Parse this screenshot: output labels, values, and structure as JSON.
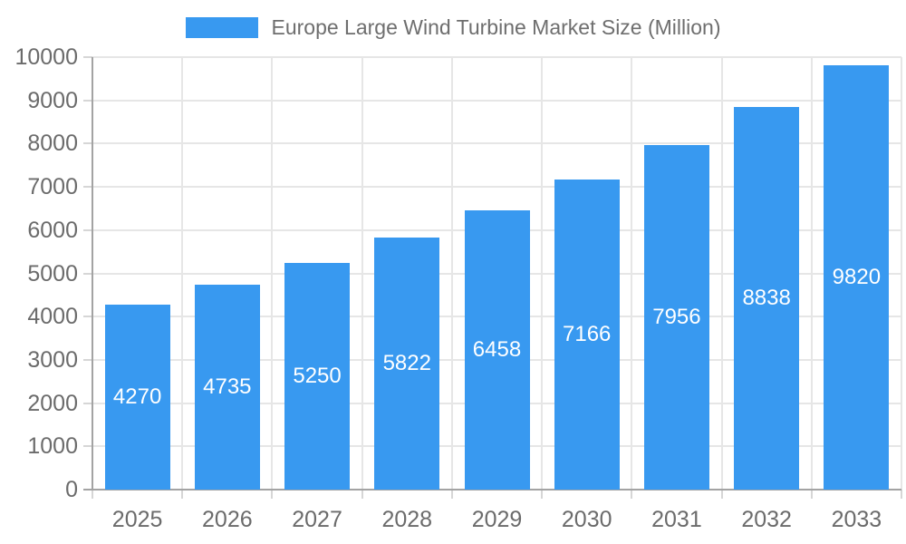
{
  "chart_data": {
    "type": "bar",
    "title": "Europe Large Wind Turbine Market Size (Million)",
    "categories": [
      "2025",
      "2026",
      "2027",
      "2028",
      "2029",
      "2030",
      "2031",
      "2032",
      "2033"
    ],
    "values": [
      4270,
      4735,
      5250,
      5822,
      6458,
      7166,
      7956,
      8838,
      9820
    ],
    "series": [
      {
        "name": "Europe Large Wind Turbine Market Size (Million)",
        "values": [
          4270,
          4735,
          5250,
          5822,
          6458,
          7166,
          7956,
          8838,
          9820
        ]
      }
    ],
    "xlabel": "",
    "ylabel": "",
    "ylim": [
      0,
      10000
    ],
    "yticks": [
      0,
      1000,
      2000,
      3000,
      4000,
      5000,
      6000,
      7000,
      8000,
      9000,
      10000
    ],
    "legend_position": "top",
    "grid": true,
    "value_labels_inside_bars": true,
    "bar_color": "#3899F0",
    "value_label_color": "#FFFFFF",
    "text_color": "#6B6B6B",
    "grid_color": "#E6E6E6",
    "axis_line_color": "#A3A3A3",
    "background_color": "#FFFFFF"
  }
}
